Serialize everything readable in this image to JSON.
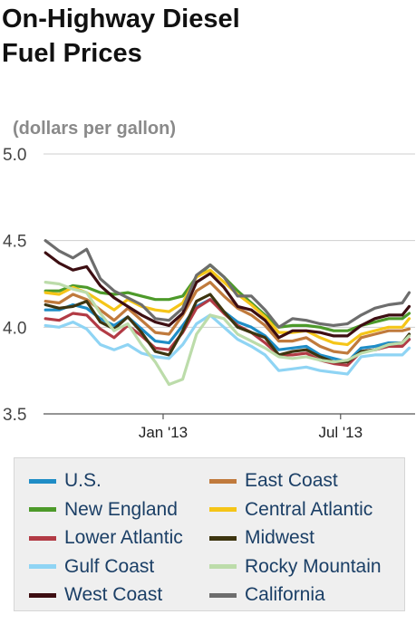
{
  "title_lines": [
    "On-Highway Diesel",
    "Fuel Prices"
  ],
  "chart_data": {
    "type": "line",
    "title": "On-Highway Diesel Fuel Prices",
    "ylabel": "(dollars per gallon)",
    "ylim": [
      3.5,
      5.0
    ],
    "yticks": [
      "5.0",
      "4.5",
      "4.0",
      "3.5"
    ],
    "xlim": [
      "2012-09-01",
      "2013-09-15"
    ],
    "xticks": [
      {
        "label": "Jan '13",
        "date": "2013-01-01"
      },
      {
        "label": "Jul '13",
        "date": "2013-07-01"
      }
    ],
    "grid": "horizontal",
    "legend_position": "bottom",
    "x": [
      "2012-09-03",
      "2012-09-17",
      "2012-10-01",
      "2012-10-15",
      "2012-10-29",
      "2012-11-12",
      "2012-11-26",
      "2012-12-10",
      "2012-12-24",
      "2013-01-07",
      "2013-01-21",
      "2013-02-04",
      "2013-02-18",
      "2013-03-04",
      "2013-03-18",
      "2013-04-01",
      "2013-04-15",
      "2013-04-29",
      "2013-05-13",
      "2013-05-27",
      "2013-06-10",
      "2013-06-24",
      "2013-07-08",
      "2013-07-22",
      "2013-08-05",
      "2013-08-19",
      "2013-09-02",
      "2013-09-09"
    ],
    "series": [
      {
        "name": "U.S.",
        "color": "#1f8dc6",
        "values": [
          4.1,
          4.1,
          4.13,
          4.11,
          4.05,
          4.01,
          4.06,
          3.99,
          3.92,
          3.91,
          4.01,
          4.12,
          4.16,
          4.09,
          4.03,
          4.0,
          3.95,
          3.87,
          3.88,
          3.89,
          3.84,
          3.82,
          3.8,
          3.88,
          3.89,
          3.91,
          3.91,
          3.93
        ]
      },
      {
        "name": "East Coast",
        "color": "#c07a3c",
        "values": [
          4.15,
          4.14,
          4.19,
          4.16,
          4.1,
          4.04,
          4.11,
          4.04,
          3.97,
          3.96,
          4.07,
          4.21,
          4.26,
          4.18,
          4.11,
          4.07,
          4.01,
          3.92,
          3.92,
          3.94,
          3.89,
          3.86,
          3.85,
          3.94,
          3.96,
          3.98,
          3.98,
          3.99
        ]
      },
      {
        "name": "New England",
        "color": "#4d9a2a",
        "values": [
          4.21,
          4.21,
          4.24,
          4.23,
          4.2,
          4.19,
          4.2,
          4.18,
          4.16,
          4.16,
          4.18,
          4.29,
          4.36,
          4.29,
          4.21,
          4.14,
          4.07,
          4.0,
          4.01,
          4.01,
          4.0,
          3.98,
          3.98,
          4.01,
          4.03,
          4.05,
          4.05,
          4.08
        ]
      },
      {
        "name": "Central Atlantic",
        "color": "#f5c518",
        "values": [
          4.2,
          4.19,
          4.23,
          4.2,
          4.15,
          4.1,
          4.16,
          4.12,
          4.1,
          4.09,
          4.14,
          4.29,
          4.33,
          4.26,
          4.19,
          4.13,
          4.06,
          3.97,
          3.97,
          3.98,
          3.94,
          3.91,
          3.9,
          3.96,
          3.98,
          4.0,
          4.0,
          4.05
        ]
      },
      {
        "name": "Lower Atlantic",
        "color": "#b23b45",
        "values": [
          4.05,
          4.04,
          4.08,
          4.07,
          3.99,
          3.94,
          4.01,
          3.95,
          3.88,
          3.87,
          3.97,
          4.11,
          4.16,
          4.08,
          4.01,
          3.97,
          3.91,
          3.84,
          3.84,
          3.85,
          3.81,
          3.79,
          3.78,
          3.86,
          3.87,
          3.89,
          3.89,
          3.93
        ]
      },
      {
        "name": "Midwest",
        "color": "#3d3510",
        "values": [
          4.13,
          4.11,
          4.12,
          4.15,
          4.03,
          3.99,
          4.06,
          3.97,
          3.86,
          3.84,
          3.98,
          4.15,
          4.19,
          4.09,
          4.0,
          3.97,
          3.94,
          3.84,
          3.86,
          3.87,
          3.83,
          3.8,
          3.8,
          3.86,
          3.87,
          3.9,
          3.91,
          3.96
        ]
      },
      {
        "name": "Gulf Coast",
        "color": "#8fd4f4",
        "values": [
          4.01,
          4.0,
          4.03,
          3.99,
          3.9,
          3.87,
          3.9,
          3.85,
          3.83,
          3.82,
          3.9,
          4.02,
          4.07,
          4.0,
          3.93,
          3.89,
          3.84,
          3.75,
          3.76,
          3.77,
          3.75,
          3.74,
          3.73,
          3.83,
          3.84,
          3.84,
          3.84,
          3.88
        ]
      },
      {
        "name": "Rocky Mountain",
        "color": "#bcdcaa",
        "values": [
          4.26,
          4.25,
          4.22,
          4.2,
          4.08,
          3.98,
          4.02,
          3.9,
          3.8,
          3.67,
          3.7,
          3.96,
          4.07,
          4.05,
          3.96,
          3.92,
          3.88,
          3.83,
          3.82,
          3.83,
          3.81,
          3.8,
          3.81,
          3.85,
          3.87,
          3.9,
          3.91,
          3.95
        ]
      },
      {
        "name": "West Coast",
        "color": "#3d0e12",
        "values": [
          4.43,
          4.37,
          4.33,
          4.35,
          4.24,
          4.17,
          4.12,
          4.07,
          4.03,
          4.01,
          4.08,
          4.26,
          4.31,
          4.23,
          4.12,
          4.1,
          4.04,
          3.94,
          3.98,
          3.98,
          3.97,
          3.95,
          3.95,
          4.01,
          4.05,
          4.07,
          4.07,
          4.12
        ]
      },
      {
        "name": "California",
        "color": "#6d6d6d",
        "values": [
          4.5,
          4.44,
          4.4,
          4.45,
          4.28,
          4.21,
          4.17,
          4.13,
          4.05,
          4.04,
          4.11,
          4.3,
          4.36,
          4.29,
          4.18,
          4.18,
          4.1,
          4.0,
          4.05,
          4.04,
          4.02,
          4.01,
          4.02,
          4.07,
          4.11,
          4.13,
          4.14,
          4.2
        ]
      }
    ]
  }
}
